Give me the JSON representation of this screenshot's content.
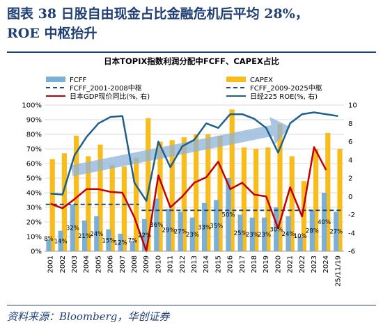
{
  "figure": {
    "title_line1": "图表 38   日股自由现金占比金融危机后平均 28%，",
    "title_line2": "ROE 中枢抬升",
    "source": "资料来源：Bloomberg，华创证券"
  },
  "chart_data": {
    "type": "bar",
    "title": "日本TOPIX指数利润分配中FCFF、CAPEX占比",
    "categories": [
      "2001",
      "2002",
      "2003",
      "2004",
      "2005",
      "2006",
      "2007",
      "2008",
      "2009",
      "2010",
      "2011",
      "2012",
      "2013",
      "2014",
      "2015",
      "2016",
      "2017",
      "2018",
      "2019",
      "2020",
      "2021",
      "2022",
      "2023",
      "2024",
      "25/11/19"
    ],
    "series": [
      {
        "name": "FCFF",
        "kind": "bar",
        "axis": "left",
        "color": "#7bafd4",
        "values": [
          0.08,
          0.14,
          0.32,
          0.21,
          0.24,
          0.15,
          0.12,
          0.07,
          0.22,
          0.36,
          0.29,
          0.27,
          0.23,
          0.33,
          0.35,
          0.5,
          0.25,
          0.23,
          0.23,
          0.3,
          0.24,
          0.1,
          0.28,
          0.4,
          0.27
        ]
      },
      {
        "name": "CAPEX",
        "kind": "bar",
        "axis": "left",
        "color": "#f8bc1c",
        "values": [
          0.63,
          0.67,
          0.79,
          0.65,
          0.73,
          0.59,
          0.58,
          0.64,
          0.91,
          0.75,
          0.76,
          0.78,
          0.8,
          0.8,
          0.79,
          0.97,
          0.71,
          0.7,
          0.71,
          0.87,
          0.65,
          0.48,
          0.7,
          0.81,
          0.7
        ]
      },
      {
        "name": "FCFF_2001-2008中枢",
        "kind": "hline",
        "axis": "left",
        "color": "#1f4e79",
        "value": 0.32,
        "x_range": [
          "2001",
          "2008"
        ]
      },
      {
        "name": "FCFF_2009-2025中枢",
        "kind": "hline",
        "axis": "left",
        "color": "#1f4e79",
        "value": 0.28,
        "x_range": [
          "2009",
          "25/11/19"
        ]
      },
      {
        "name": "日本GDP现价同比(%, 右)",
        "kind": "line",
        "axis": "right",
        "color": "#c00000",
        "values": [
          -0.8,
          -1.3,
          -0.3,
          0.8,
          0.8,
          0.5,
          0.4,
          -2.3,
          -6.0,
          2.3,
          -1.2,
          0.0,
          1.5,
          2.1,
          3.8,
          0.8,
          1.5,
          0.2,
          0.0,
          -3.5,
          1.0,
          -2.2,
          5.4,
          2.9,
          null
        ]
      },
      {
        "name": "日经225 ROE(%, 右)",
        "kind": "line",
        "axis": "right",
        "color": "#1f5f8b",
        "values": [
          0.3,
          0.2,
          4.5,
          6.5,
          8.0,
          8.7,
          8.8,
          1.5,
          -0.5,
          6.0,
          3.2,
          5.5,
          6.2,
          8.0,
          7.5,
          9.0,
          9.0,
          8.5,
          7.5,
          4.8,
          8.0,
          9.0,
          9.2,
          9.0,
          8.8
        ]
      }
    ],
    "data_labels": [
      "8%",
      "14%",
      "32%",
      "21%",
      "24%",
      "15%",
      "12%",
      "7%",
      "22%",
      "36%",
      "29%",
      "27%",
      "23%",
      "33%",
      "35%",
      "50%",
      "25%",
      "23%",
      "23%",
      "30%",
      "24%",
      "10%",
      "28%",
      "40%",
      "27%"
    ],
    "y_left": {
      "min": 0,
      "max": 1.0,
      "ticks": [
        "0%",
        "10%",
        "20%",
        "30%",
        "40%",
        "50%",
        "60%",
        "70%",
        "80%",
        "90%",
        "100%"
      ]
    },
    "y_right": {
      "min": -6,
      "max": 10,
      "ticks": [
        "-6",
        "-4",
        "-2",
        "0",
        "2",
        "4",
        "6",
        "8",
        "10"
      ]
    },
    "grid": true,
    "legend": "top",
    "annotation": "large translucent upward arrow from 2003 to 2021 indicating rising trend"
  }
}
